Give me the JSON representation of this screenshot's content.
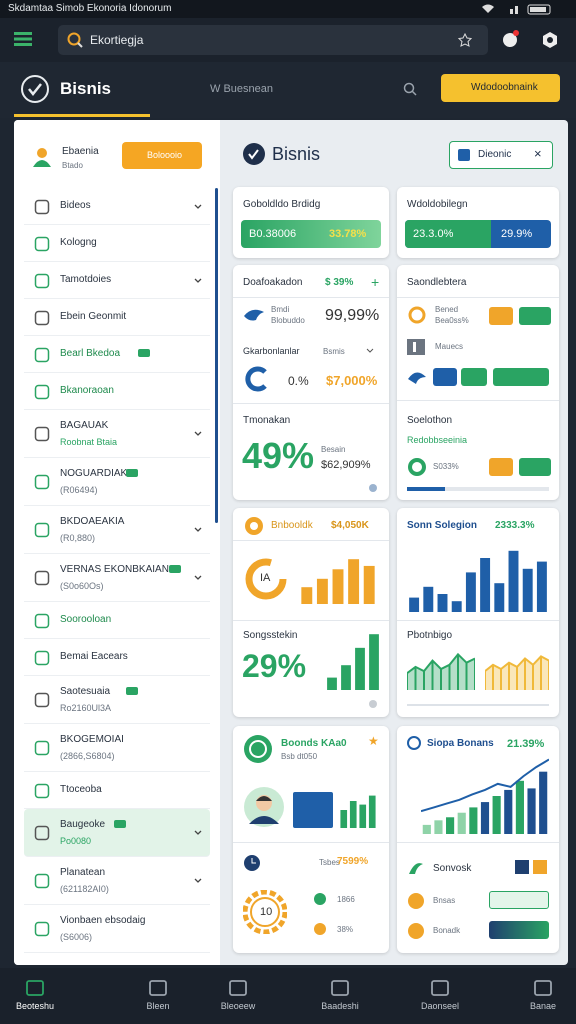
{
  "status_bar": {
    "title": "Skdamtaa Simob Ekonoria Idonorum"
  },
  "search": {
    "text": "Ekortiegja"
  },
  "header": {
    "title": "Bisnis",
    "subtitle": "W Buesnean",
    "button": "Wdodoobnaink"
  },
  "sidebar": {
    "name": "Ebaenia",
    "sub": "Btado",
    "button": "Boloooio",
    "items": [
      {
        "label": "Bideos",
        "chevron": true
      },
      {
        "label": "Kologng"
      },
      {
        "label": "Tamotdoies",
        "chevron": true
      },
      {
        "label": "Ebein Geonmit"
      },
      {
        "label": "Bearl Bkedoa",
        "green": true,
        "badge": true
      },
      {
        "label": "Bkanoraoan",
        "green": true
      },
      {
        "label": "BAGAUAK",
        "sub": "Roobnat Btaia",
        "green_sub": true,
        "chevron": true
      },
      {
        "label": "NOGUARDIAK",
        "sub": "(R06494)",
        "badge": true
      },
      {
        "label": "BKDOAEAKIA",
        "sub": "(R0,880)",
        "chevron": true
      },
      {
        "label": "VERNAS EKONBKAIAN",
        "sub": "(S0o60Os)",
        "badge": true,
        "chevron": true
      },
      {
        "label": "Soorooloan",
        "green": true
      },
      {
        "label": "Bemai Eacears"
      },
      {
        "label": "Saotesuaia",
        "sub": "Ro2160Ul3A",
        "badge": true
      },
      {
        "label": "BKOGEMOIAI",
        "sub": "(2866,S6804)"
      },
      {
        "label": "Ttoceoba"
      },
      {
        "label": "Baugeoke",
        "sub": "Po0080",
        "green_sub": true,
        "badge": true,
        "chevron": true,
        "active": true
      },
      {
        "label": "Planatean",
        "sub": "(621182AI0)",
        "chevron": true
      },
      {
        "label": "Vionbaen ebsodaig",
        "sub": "(S6006)"
      }
    ]
  },
  "panel": {
    "title": "Bisnis",
    "chip": "Dieonic",
    "card_a": {
      "title": "Goboldldo Brdidg",
      "left": "B0.38006",
      "right": "33.78%"
    },
    "card_b": {
      "title": "Wdoldobilegn",
      "left": "23.3.0%",
      "right": "29.9%"
    },
    "card_c": {
      "title": "Doafoakadon",
      "badge": "$ 39%",
      "row1_title": "Bmdi",
      "row1_sub": "Blobuddo",
      "row1_value": "99,99%",
      "row2_title": "Gkarbonlanlar",
      "row2_tag": "Bsmis",
      "row2_a": "0.%",
      "row2_b": "$7,000%",
      "big_title": "Tmonakan",
      "big": "49%",
      "big_label": "Besain",
      "big_value": "$62,909%"
    },
    "card_d": {
      "title": "Saondlebtera",
      "row1_title": "Bened",
      "row1_sub": "Bea0ss%",
      "row2_title": "Mauecs",
      "row3_title": "Soelothon",
      "row3_sub": "Redobbseeinia",
      "row4_value": "S033%"
    },
    "card_e": {
      "title": "Bnbooldk",
      "value": "$4,050K",
      "donut_label": "IA",
      "chart": {
        "type": "bar",
        "color": "#f0a52a",
        "ylim": [
          0,
          100
        ],
        "values": [
          30,
          45,
          62,
          80,
          68
        ]
      },
      "sub_title": "Songsstekin",
      "big": "29%",
      "chart2": {
        "type": "bar",
        "color": "#2aa463",
        "ylim": [
          0,
          100
        ],
        "values": [
          20,
          40,
          68,
          90
        ]
      }
    },
    "card_f": {
      "title": "Sonn Solegion",
      "value": "2333.3%",
      "chart": {
        "type": "bar",
        "color": "#1f5fa8",
        "ylim": [
          0,
          100
        ],
        "values": [
          20,
          35,
          25,
          15,
          55,
          75,
          40,
          85,
          60,
          70
        ]
      },
      "sub_title": "Pbotnbigo",
      "area1": {
        "type": "area",
        "color": "#2aa463",
        "ylim": [
          0,
          100
        ],
        "values": [
          40,
          55,
          45,
          70,
          50,
          60,
          85,
          65,
          75
        ]
      },
      "area2": {
        "type": "area",
        "color": "#f0b93a",
        "ylim": [
          0,
          100
        ],
        "values": [
          45,
          60,
          50,
          65,
          55,
          75,
          60,
          80,
          70
        ]
      }
    },
    "card_g": {
      "title": "Boonds KAa0",
      "sub": "Bsb dt050",
      "tag": "Tsbes",
      "value": "7599%",
      "gear": "10",
      "row1": "1866",
      "row2": "38%",
      "chart": {
        "type": "bar",
        "color": "#2aa463",
        "ylim": [
          0,
          100
        ],
        "values": [
          50,
          75,
          65,
          90
        ]
      }
    },
    "card_h": {
      "title": "Siopa Bonans",
      "value": "21.39%",
      "chart": {
        "type": "bar",
        "colors": [
          "#8fd3a8",
          "#8fd3a8",
          "#2aa463",
          "#8fd3a8",
          "#2aa463",
          "#1f4f8f",
          "#2aa463",
          "#1f4f8f",
          "#2aa463",
          "#1f4f8f",
          "#1f4f8f"
        ],
        "color": "#2aa463",
        "ylim": [
          0,
          100
        ],
        "values": [
          12,
          18,
          22,
          28,
          35,
          42,
          50,
          58,
          70,
          60,
          82
        ]
      },
      "trend": {
        "type": "line",
        "color": "#1f5fa8",
        "ylim": [
          0,
          100
        ],
        "values": [
          30,
          35,
          40,
          45,
          52,
          58,
          66,
          62,
          76,
          88,
          98
        ]
      },
      "row_title": "Sonvosk",
      "row1": "Bnsas",
      "row2": "Bonadk"
    }
  },
  "nav": [
    {
      "label": "Beoteshu"
    },
    {
      "label": "Bleen"
    },
    {
      "label": "Bleoeew"
    },
    {
      "label": "Baadeshi"
    },
    {
      "label": "Daonseel"
    },
    {
      "label": "Banae"
    }
  ]
}
